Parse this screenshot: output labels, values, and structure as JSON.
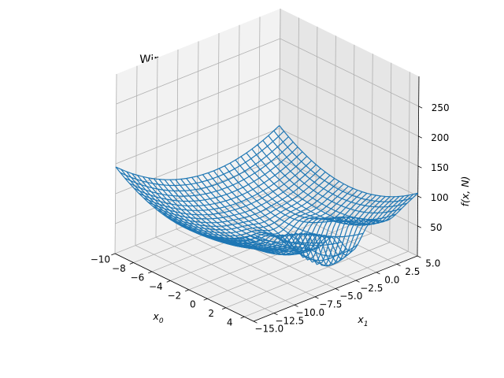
{
  "chart_data": {
    "type": "wireframe-3d",
    "title": "Wireframe plot for function f when N = T",
    "xlabel": "x0",
    "ylabel": "x1",
    "zlabel": "f(x, N)",
    "xlim": [
      -10,
      5
    ],
    "ylim": [
      -15,
      5
    ],
    "zlim": [
      0,
      300
    ],
    "x_ticks": [
      "−10",
      "−8",
      "−6",
      "−4",
      "−2",
      "0",
      "2",
      "4"
    ],
    "y_ticks": [
      "−15.0",
      "−12.5",
      "−10.0",
      "−7.5",
      "−5.0",
      "−2.5",
      "0.0",
      "2.5",
      "5.0"
    ],
    "z_ticks": [
      "50",
      "100",
      "150",
      "200",
      "250"
    ],
    "x_tick_values": [
      -10,
      -8,
      -6,
      -4,
      -2,
      0,
      2,
      4
    ],
    "y_tick_values": [
      -15,
      -12.5,
      -10,
      -7.5,
      -5,
      -2.5,
      0,
      2.5,
      5
    ],
    "z_tick_values": [
      50,
      100,
      150,
      200,
      250
    ],
    "surface": "bowl rising to about 290 at the corners, with an oscillating dip near x0 ≈ 2, x1 ≈ -3",
    "wire_color": "#1f77b4",
    "grid": true
  }
}
